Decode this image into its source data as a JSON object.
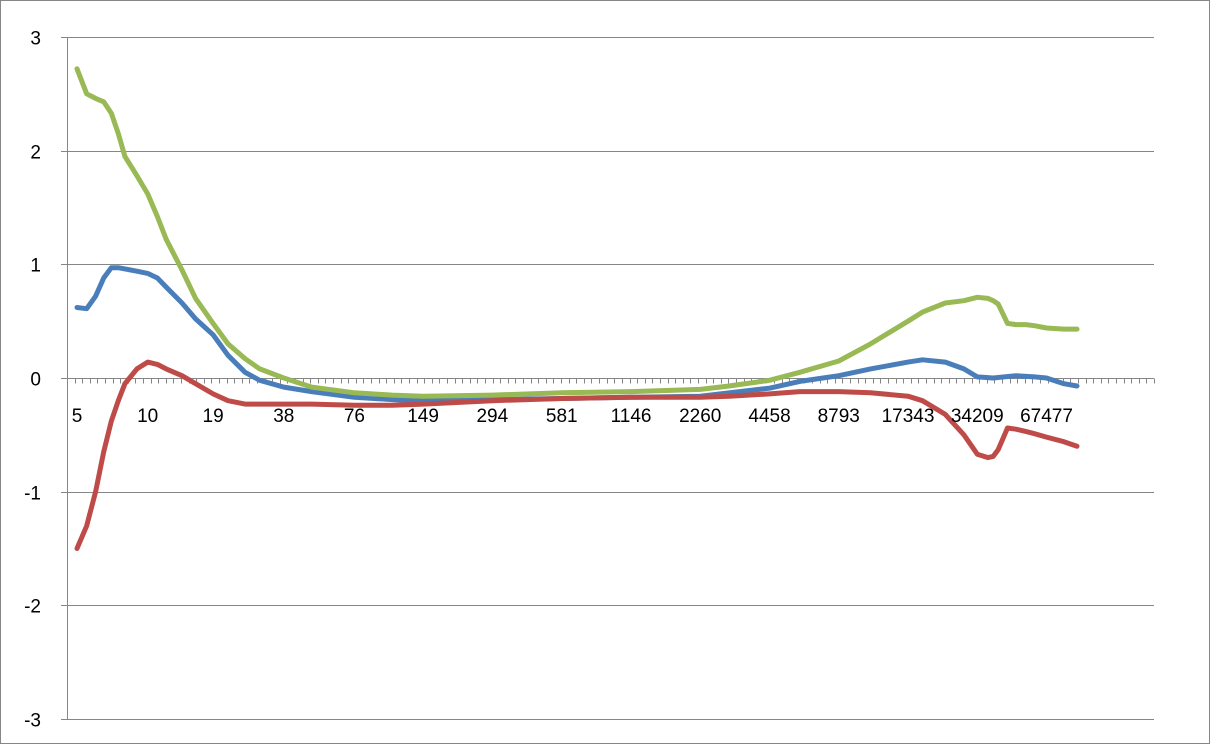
{
  "chart_data": {
    "type": "line",
    "title": "",
    "xlabel": "",
    "ylabel": "",
    "ylim": [
      -3,
      3
    ],
    "y_ticks": [
      3,
      2,
      1,
      0,
      -1,
      -2,
      -3
    ],
    "x_scale": "log",
    "x_range": [
      5,
      91000
    ],
    "x_tick_labels": [
      "5",
      "10",
      "19",
      "38",
      "76",
      "149",
      "294",
      "581",
      "1146",
      "2260",
      "4458",
      "8793",
      "17343",
      "34209",
      "67477"
    ],
    "x_tick_values": [
      5,
      10,
      19,
      38,
      76,
      149,
      294,
      581,
      1146,
      2260,
      4458,
      8793,
      17343,
      34209,
      67477
    ],
    "grid": "horizontal",
    "legend": "none",
    "series": [
      {
        "color": "#4a7ebb",
        "x": [
          5,
          5.5,
          6,
          6.5,
          7,
          7.5,
          8,
          9,
          10,
          11,
          12,
          14,
          16,
          19,
          22,
          26,
          30,
          38,
          50,
          76,
          110,
          149,
          294,
          581,
          1146,
          2260,
          3000,
          4458,
          6000,
          8793,
          12000,
          17343,
          20000,
          25000,
          30000,
          34209,
          40000,
          50000,
          60000,
          67477,
          80000,
          91000
        ],
        "y": [
          0.62,
          0.61,
          0.72,
          0.88,
          0.97,
          0.97,
          0.96,
          0.94,
          0.92,
          0.88,
          0.8,
          0.66,
          0.52,
          0.38,
          0.2,
          0.05,
          -0.02,
          -0.08,
          -0.12,
          -0.17,
          -0.19,
          -0.2,
          -0.19,
          -0.18,
          -0.17,
          -0.16,
          -0.13,
          -0.09,
          -0.03,
          0.02,
          0.08,
          0.14,
          0.16,
          0.14,
          0.08,
          0.01,
          0.0,
          0.02,
          0.01,
          0.0,
          -0.05,
          -0.07
        ]
      },
      {
        "color": "#be4b48",
        "x": [
          5,
          5.5,
          6,
          6.5,
          7,
          7.5,
          8,
          9,
          10,
          11,
          12,
          14,
          16,
          19,
          22,
          26,
          30,
          38,
          50,
          76,
          110,
          149,
          294,
          581,
          1146,
          2260,
          3000,
          4458,
          6000,
          8793,
          12000,
          17343,
          20000,
          25000,
          30000,
          34209,
          38000,
          40000,
          42000,
          46000,
          50000,
          55000,
          60000,
          67477,
          80000,
          91000
        ],
        "y": [
          -1.5,
          -1.3,
          -1.0,
          -0.65,
          -0.38,
          -0.2,
          -0.05,
          0.08,
          0.14,
          0.12,
          0.08,
          0.02,
          -0.05,
          -0.14,
          -0.2,
          -0.23,
          -0.23,
          -0.23,
          -0.23,
          -0.24,
          -0.24,
          -0.23,
          -0.2,
          -0.18,
          -0.17,
          -0.17,
          -0.16,
          -0.14,
          -0.12,
          -0.12,
          -0.13,
          -0.16,
          -0.2,
          -0.32,
          -0.5,
          -0.67,
          -0.7,
          -0.69,
          -0.63,
          -0.44,
          -0.45,
          -0.47,
          -0.49,
          -0.52,
          -0.56,
          -0.6
        ]
      },
      {
        "color": "#98b954",
        "x": [
          5,
          5.5,
          6,
          6.5,
          7,
          7.5,
          8,
          9,
          10,
          11,
          12,
          14,
          16,
          19,
          22,
          26,
          30,
          38,
          50,
          76,
          110,
          149,
          294,
          581,
          1146,
          2260,
          3000,
          4458,
          6000,
          8793,
          12000,
          17343,
          20000,
          25000,
          30000,
          34209,
          38000,
          40000,
          42000,
          46000,
          50000,
          55000,
          60000,
          67477,
          80000,
          91000
        ],
        "y": [
          2.72,
          2.5,
          2.46,
          2.43,
          2.33,
          2.15,
          1.95,
          1.78,
          1.62,
          1.42,
          1.22,
          0.95,
          0.7,
          0.48,
          0.3,
          0.17,
          0.08,
          0.0,
          -0.08,
          -0.13,
          -0.15,
          -0.16,
          -0.15,
          -0.13,
          -0.12,
          -0.1,
          -0.07,
          -0.02,
          0.05,
          0.15,
          0.3,
          0.5,
          0.58,
          0.66,
          0.68,
          0.71,
          0.7,
          0.68,
          0.65,
          0.48,
          0.47,
          0.47,
          0.46,
          0.44,
          0.43,
          0.43
        ]
      }
    ]
  }
}
